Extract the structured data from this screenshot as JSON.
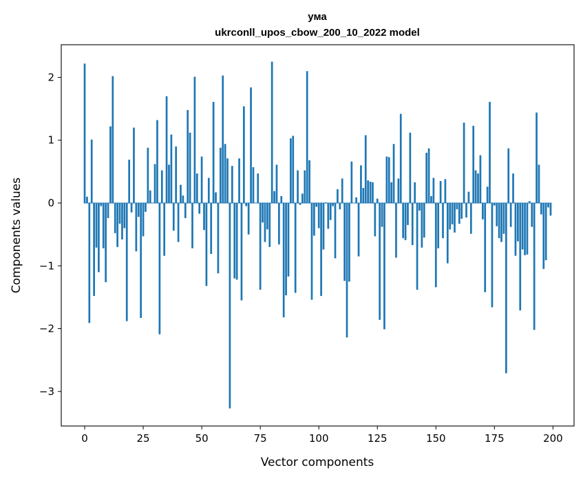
{
  "chart_data": {
    "type": "bar",
    "title": "ума",
    "subtitle": "ukrconll_upos_cbow_200_10_2022 model",
    "xlabel": "Vector components",
    "ylabel": "Components values",
    "xlim": [
      -10,
      209
    ],
    "ylim": [
      -3.55,
      2.52
    ],
    "xticks": [
      0,
      25,
      50,
      75,
      100,
      125,
      150,
      175,
      200
    ],
    "yticks": [
      2,
      1,
      0,
      -1,
      -2,
      -3
    ],
    "ytick_labels": [
      "2",
      "1",
      "0",
      "−1",
      "−2",
      "−3"
    ],
    "grid": false,
    "bar_color": "#1f77b4",
    "values": [
      2.22,
      0.1,
      -1.91,
      1.01,
      -1.48,
      -0.71,
      -1.1,
      -0.05,
      -0.72,
      -1.26,
      -0.24,
      1.22,
      2.02,
      -0.48,
      -0.7,
      -0.33,
      -0.58,
      -0.4,
      -1.88,
      0.69,
      -0.15,
      1.2,
      -0.77,
      -0.22,
      -1.83,
      -0.53,
      -0.14,
      0.88,
      0.2,
      0.0,
      0.62,
      1.32,
      -2.09,
      0.52,
      -0.84,
      1.7,
      0.61,
      1.09,
      -0.44,
      0.9,
      -0.62,
      0.29,
      0.12,
      -0.24,
      1.48,
      1.12,
      -0.72,
      2.01,
      0.47,
      -0.17,
      0.74,
      -0.43,
      -1.32,
      0.4,
      -0.81,
      1.61,
      0.17,
      -1.12,
      0.88,
      2.03,
      0.94,
      0.71,
      -3.27,
      0.59,
      -1.2,
      -1.22,
      0.71,
      -1.55,
      1.54,
      -0.05,
      -0.5,
      1.84,
      0.57,
      0.0,
      0.47,
      -1.38,
      -0.31,
      -0.62,
      -0.42,
      -0.7,
      2.25,
      0.19,
      0.61,
      -0.66,
      0.11,
      -1.82,
      -1.47,
      -1.17,
      1.03,
      1.07,
      -1.43,
      0.52,
      -0.03,
      0.15,
      0.52,
      2.1,
      0.68,
      -1.54,
      -0.52,
      -0.06,
      -0.4,
      -1.48,
      -0.74,
      0.01,
      -0.41,
      -0.27,
      -0.05,
      -0.88,
      0.22,
      -0.1,
      0.39,
      -1.24,
      -2.14,
      -1.25,
      0.66,
      0.0,
      0.09,
      -0.85,
      0.6,
      0.24,
      1.08,
      0.36,
      0.34,
      0.33,
      -0.53,
      0.07,
      -1.86,
      -0.38,
      -2.01,
      0.74,
      0.73,
      0.33,
      0.94,
      -0.87,
      0.39,
      1.42,
      -0.56,
      -0.59,
      -0.35,
      1.12,
      -0.67,
      0.33,
      -1.38,
      -0.12,
      -0.71,
      -0.55,
      0.8,
      0.87,
      0.11,
      0.4,
      -1.34,
      -0.72,
      0.35,
      -0.56,
      0.38,
      -0.96,
      -0.42,
      -0.34,
      -0.47,
      -0.1,
      -0.33,
      -0.25,
      1.28,
      -0.23,
      0.18,
      -0.49,
      1.23,
      0.52,
      0.47,
      0.76,
      -0.26,
      -1.42,
      0.26,
      1.61,
      -1.66,
      -0.04,
      -0.37,
      -0.56,
      -0.62,
      -0.49,
      -2.71,
      0.87,
      -0.38,
      0.47,
      -0.84,
      -0.61,
      -1.71,
      -0.74,
      -0.83,
      -0.82,
      0.03,
      -0.38,
      -2.02,
      1.44,
      0.61,
      -0.18,
      -1.05,
      -0.91,
      -0.07,
      -0.2
    ]
  }
}
